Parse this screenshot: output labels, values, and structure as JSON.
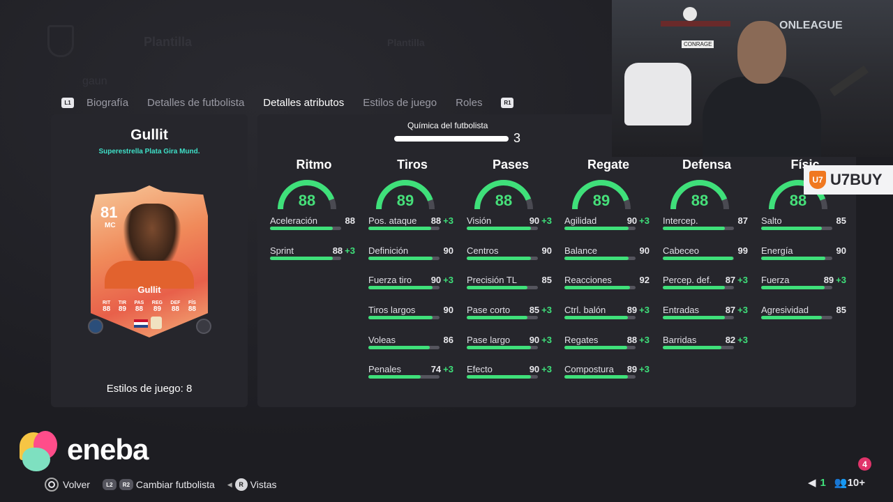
{
  "header": {
    "ghost_title": "Plantilla",
    "ghost_title2": "Plantilla",
    "ghost_user": "gaun",
    "left_shoulder": "L1",
    "right_shoulder": "R1"
  },
  "tabs": [
    {
      "label": "Biografía",
      "active": false
    },
    {
      "label": "Detalles de futbolista",
      "active": false
    },
    {
      "label": "Detalles atributos",
      "active": true
    },
    {
      "label": "Estilos de juego",
      "active": false
    },
    {
      "label": "Roles",
      "active": false
    }
  ],
  "player": {
    "name": "Gullit",
    "subtitle": "Superestrella Plata Gira Mund.",
    "card_rating": "81",
    "card_position": "MC",
    "card_name": "Gullit",
    "card_stats": [
      {
        "label": "RIT",
        "value": "88"
      },
      {
        "label": "TIR",
        "value": "89"
      },
      {
        "label": "PAS",
        "value": "88"
      },
      {
        "label": "REG",
        "value": "89"
      },
      {
        "label": "DEF",
        "value": "88"
      },
      {
        "label": "FÍS",
        "value": "88"
      }
    ],
    "playstyles_label": "Estilos de juego: 8"
  },
  "chemistry": {
    "label": "Química del futbolista",
    "value": "3",
    "fill": 1.0
  },
  "categories": [
    {
      "title": "Ritmo",
      "value": "88",
      "stats": [
        {
          "name": "Aceleración",
          "value": "88",
          "bonus": ""
        },
        {
          "name": "Sprint",
          "value": "88",
          "bonus": "+3"
        }
      ]
    },
    {
      "title": "Tiros",
      "value": "89",
      "stats": [
        {
          "name": "Pos. ataque",
          "value": "88",
          "bonus": "+3"
        },
        {
          "name": "Definición",
          "value": "90",
          "bonus": ""
        },
        {
          "name": "Fuerza tiro",
          "value": "90",
          "bonus": "+3"
        },
        {
          "name": "Tiros largos",
          "value": "90",
          "bonus": ""
        },
        {
          "name": "Voleas",
          "value": "86",
          "bonus": ""
        },
        {
          "name": "Penales",
          "value": "74",
          "bonus": "+3"
        }
      ]
    },
    {
      "title": "Pases",
      "value": "88",
      "stats": [
        {
          "name": "Visión",
          "value": "90",
          "bonus": "+3"
        },
        {
          "name": "Centros",
          "value": "90",
          "bonus": ""
        },
        {
          "name": "Precisión TL",
          "value": "85",
          "bonus": ""
        },
        {
          "name": "Pase corto",
          "value": "85",
          "bonus": "+3"
        },
        {
          "name": "Pase largo",
          "value": "90",
          "bonus": "+3"
        },
        {
          "name": "Efecto",
          "value": "90",
          "bonus": "+3"
        }
      ]
    },
    {
      "title": "Regate",
      "value": "89",
      "stats": [
        {
          "name": "Agilidad",
          "value": "90",
          "bonus": "+3"
        },
        {
          "name": "Balance",
          "value": "90",
          "bonus": ""
        },
        {
          "name": "Reacciones",
          "value": "92",
          "bonus": ""
        },
        {
          "name": "Ctrl. balón",
          "value": "89",
          "bonus": "+3"
        },
        {
          "name": "Regates",
          "value": "88",
          "bonus": "+3"
        },
        {
          "name": "Compostura",
          "value": "89",
          "bonus": "+3"
        }
      ]
    },
    {
      "title": "Defensa",
      "value": "88",
      "stats": [
        {
          "name": "Intercep.",
          "value": "87",
          "bonus": ""
        },
        {
          "name": "Cabeceo",
          "value": "99",
          "bonus": ""
        },
        {
          "name": "Percep. def.",
          "value": "87",
          "bonus": "+3"
        },
        {
          "name": "Entradas",
          "value": "87",
          "bonus": "+3"
        },
        {
          "name": "Barridas",
          "value": "82",
          "bonus": "+3"
        }
      ]
    },
    {
      "title": "Físic",
      "value": "88",
      "stats": [
        {
          "name": "Salto",
          "value": "85",
          "bonus": ""
        },
        {
          "name": "Energía",
          "value": "90",
          "bonus": ""
        },
        {
          "name": "Fuerza",
          "value": "89",
          "bonus": "+3"
        },
        {
          "name": "Agresividad",
          "value": "85",
          "bonus": ""
        }
      ]
    }
  ],
  "overlay": {
    "cam_league": "ONLEAGUE",
    "cam_sign": "CONRAGE",
    "sponsor": "U7BUY",
    "sponsor_mark": "U7",
    "eneba": "eneba"
  },
  "footer": {
    "back_label": "Volver",
    "l2": "L2",
    "r2": "R2",
    "switch_label": "Cambiar futbolista",
    "r_btn": "R",
    "views_label": "Vistas",
    "notif_count": "4",
    "voice_count": "1",
    "party_count": "10+"
  },
  "colors": {
    "accent_green": "#3fe07a",
    "teal_sub": "#3fe0c8",
    "panel": "#26262c",
    "bg": "#1d1d22"
  }
}
